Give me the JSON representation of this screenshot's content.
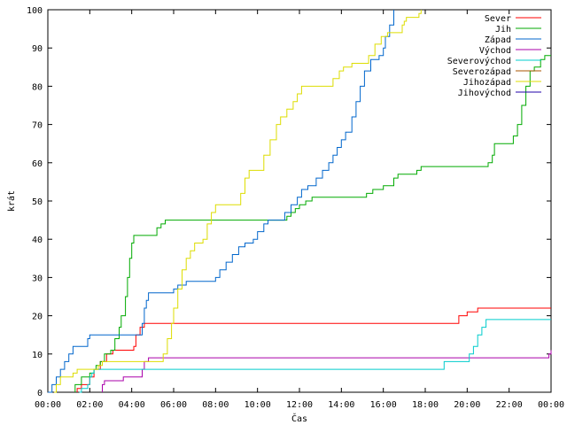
{
  "chart_data": {
    "type": "line",
    "title": "",
    "xlabel": "Čas",
    "ylabel": "krát",
    "xlim": [
      0,
      24
    ],
    "ylim": [
      0,
      100
    ],
    "x_ticks": [
      "00:00",
      "02:00",
      "04:00",
      "06:00",
      "08:00",
      "10:00",
      "12:00",
      "14:00",
      "16:00",
      "18:00",
      "20:00",
      "22:00",
      "00:00"
    ],
    "y_ticks": [
      "0",
      "10",
      "20",
      "30",
      "40",
      "50",
      "60",
      "70",
      "80",
      "90",
      "100"
    ],
    "grid": false,
    "legend_position": "top-right",
    "series": [
      {
        "name": "Sever",
        "color": "#ff0000",
        "points": [
          [
            1.4,
            0
          ],
          [
            1.4,
            1
          ],
          [
            1.6,
            2
          ],
          [
            2.0,
            4
          ],
          [
            2.2,
            6
          ],
          [
            2.5,
            8
          ],
          [
            2.8,
            10
          ],
          [
            3.1,
            11
          ],
          [
            4.1,
            12
          ],
          [
            4.2,
            15
          ],
          [
            4.4,
            17
          ],
          [
            4.6,
            18
          ],
          [
            19.5,
            18
          ],
          [
            19.6,
            20
          ],
          [
            20.0,
            21
          ],
          [
            20.5,
            22
          ],
          [
            24,
            22
          ]
        ]
      },
      {
        "name": "Jih",
        "color": "#00aa00",
        "points": [
          [
            1.3,
            0
          ],
          [
            1.3,
            2
          ],
          [
            1.6,
            4
          ],
          [
            2.0,
            5
          ],
          [
            2.2,
            6
          ],
          [
            2.3,
            7
          ],
          [
            2.5,
            8
          ],
          [
            2.7,
            10
          ],
          [
            3.0,
            11
          ],
          [
            3.2,
            14
          ],
          [
            3.4,
            17
          ],
          [
            3.5,
            20
          ],
          [
            3.7,
            25
          ],
          [
            3.8,
            30
          ],
          [
            3.9,
            35
          ],
          [
            4.0,
            39
          ],
          [
            4.1,
            41
          ],
          [
            5.0,
            41
          ],
          [
            5.2,
            43
          ],
          [
            5.4,
            44
          ],
          [
            5.6,
            45
          ],
          [
            11.2,
            45
          ],
          [
            11.4,
            46
          ],
          [
            11.6,
            47
          ],
          [
            11.8,
            48
          ],
          [
            12.0,
            49
          ],
          [
            12.3,
            50
          ],
          [
            12.6,
            51
          ],
          [
            15.0,
            51
          ],
          [
            15.2,
            52
          ],
          [
            15.5,
            53
          ],
          [
            16.0,
            54
          ],
          [
            16.5,
            56
          ],
          [
            16.7,
            57
          ],
          [
            17.5,
            57
          ],
          [
            17.6,
            58
          ],
          [
            17.8,
            59
          ],
          [
            20.8,
            59
          ],
          [
            21.0,
            60
          ],
          [
            21.2,
            62
          ],
          [
            21.3,
            65
          ],
          [
            22.0,
            65
          ],
          [
            22.2,
            67
          ],
          [
            22.4,
            70
          ],
          [
            22.6,
            75
          ],
          [
            22.8,
            80
          ],
          [
            23.0,
            84
          ],
          [
            23.2,
            85
          ],
          [
            23.5,
            87
          ],
          [
            23.7,
            88
          ],
          [
            24,
            88
          ]
        ]
      },
      {
        "name": "Západ",
        "color": "#0066cc",
        "points": [
          [
            0.0,
            0
          ],
          [
            0.2,
            2
          ],
          [
            0.4,
            4
          ],
          [
            0.6,
            6
          ],
          [
            0.8,
            8
          ],
          [
            1.0,
            10
          ],
          [
            1.2,
            12
          ],
          [
            1.8,
            12
          ],
          [
            1.9,
            14
          ],
          [
            2.0,
            15
          ],
          [
            4.4,
            15
          ],
          [
            4.5,
            18
          ],
          [
            4.6,
            22
          ],
          [
            4.7,
            24
          ],
          [
            4.8,
            26
          ],
          [
            5.8,
            26
          ],
          [
            6.0,
            27
          ],
          [
            6.2,
            28
          ],
          [
            6.6,
            29
          ],
          [
            7.8,
            29
          ],
          [
            8.0,
            30
          ],
          [
            8.2,
            32
          ],
          [
            8.5,
            34
          ],
          [
            8.8,
            36
          ],
          [
            9.1,
            38
          ],
          [
            9.4,
            39
          ],
          [
            9.8,
            40
          ],
          [
            10.0,
            42
          ],
          [
            10.3,
            44
          ],
          [
            10.5,
            45
          ],
          [
            11.0,
            45
          ],
          [
            11.3,
            47
          ],
          [
            11.6,
            49
          ],
          [
            11.9,
            51
          ],
          [
            12.1,
            53
          ],
          [
            12.4,
            54
          ],
          [
            12.8,
            56
          ],
          [
            13.1,
            58
          ],
          [
            13.4,
            60
          ],
          [
            13.6,
            62
          ],
          [
            13.8,
            64
          ],
          [
            14.0,
            66
          ],
          [
            14.2,
            68
          ],
          [
            14.5,
            72
          ],
          [
            14.7,
            76
          ],
          [
            14.9,
            80
          ],
          [
            15.1,
            84
          ],
          [
            15.4,
            87
          ],
          [
            15.8,
            88
          ],
          [
            16.0,
            90
          ],
          [
            16.1,
            93
          ],
          [
            16.3,
            96
          ],
          [
            16.5,
            100
          ]
        ]
      },
      {
        "name": "Východ",
        "color": "#aa00aa",
        "points": [
          [
            2.6,
            0
          ],
          [
            2.6,
            2
          ],
          [
            2.7,
            3
          ],
          [
            3.5,
            3
          ],
          [
            3.6,
            4
          ],
          [
            4.4,
            4
          ],
          [
            4.5,
            6
          ],
          [
            4.6,
            8
          ],
          [
            4.8,
            9
          ],
          [
            23.8,
            9
          ],
          [
            23.9,
            10
          ],
          [
            24,
            11
          ]
        ]
      },
      {
        "name": "Severovýchod",
        "color": "#00cccc",
        "points": [
          [
            1.5,
            0
          ],
          [
            1.6,
            1
          ],
          [
            1.9,
            2
          ],
          [
            2.0,
            4
          ],
          [
            2.1,
            5
          ],
          [
            2.2,
            6
          ],
          [
            18.7,
            6
          ],
          [
            18.9,
            8
          ],
          [
            19.9,
            8
          ],
          [
            20.1,
            10
          ],
          [
            20.3,
            12
          ],
          [
            20.5,
            15
          ],
          [
            20.7,
            17
          ],
          [
            20.9,
            19
          ],
          [
            24,
            19
          ]
        ]
      },
      {
        "name": "Severozápad",
        "color": "#aa5500",
        "points": []
      },
      {
        "name": "Jihozápad",
        "color": "#dddd00",
        "points": [
          [
            0.3,
            0
          ],
          [
            0.4,
            2
          ],
          [
            0.6,
            4
          ],
          [
            1.0,
            4
          ],
          [
            1.2,
            5
          ],
          [
            1.4,
            6
          ],
          [
            2.2,
            6
          ],
          [
            2.4,
            7
          ],
          [
            2.6,
            8
          ],
          [
            5.3,
            8
          ],
          [
            5.5,
            10
          ],
          [
            5.7,
            14
          ],
          [
            5.9,
            18
          ],
          [
            6.0,
            22
          ],
          [
            6.2,
            27
          ],
          [
            6.4,
            32
          ],
          [
            6.6,
            35
          ],
          [
            6.8,
            37
          ],
          [
            7.0,
            39
          ],
          [
            7.4,
            40
          ],
          [
            7.6,
            44
          ],
          [
            7.8,
            47
          ],
          [
            8.0,
            49
          ],
          [
            9.1,
            49
          ],
          [
            9.2,
            52
          ],
          [
            9.4,
            56
          ],
          [
            9.6,
            58
          ],
          [
            10.0,
            58
          ],
          [
            10.3,
            62
          ],
          [
            10.6,
            66
          ],
          [
            10.9,
            70
          ],
          [
            11.1,
            72
          ],
          [
            11.4,
            74
          ],
          [
            11.7,
            76
          ],
          [
            11.9,
            78
          ],
          [
            12.1,
            80
          ],
          [
            13.3,
            80
          ],
          [
            13.6,
            82
          ],
          [
            13.9,
            84
          ],
          [
            14.1,
            85
          ],
          [
            14.5,
            86
          ],
          [
            15.1,
            86
          ],
          [
            15.3,
            88
          ],
          [
            15.6,
            91
          ],
          [
            15.9,
            93
          ],
          [
            16.2,
            94
          ],
          [
            16.6,
            94
          ],
          [
            16.9,
            96
          ],
          [
            17.0,
            97
          ],
          [
            17.1,
            98
          ],
          [
            17.6,
            98
          ],
          [
            17.7,
            99
          ],
          [
            17.8,
            100
          ]
        ]
      },
      {
        "name": "Jihovýchod",
        "color": "#2200aa",
        "points": []
      }
    ]
  }
}
